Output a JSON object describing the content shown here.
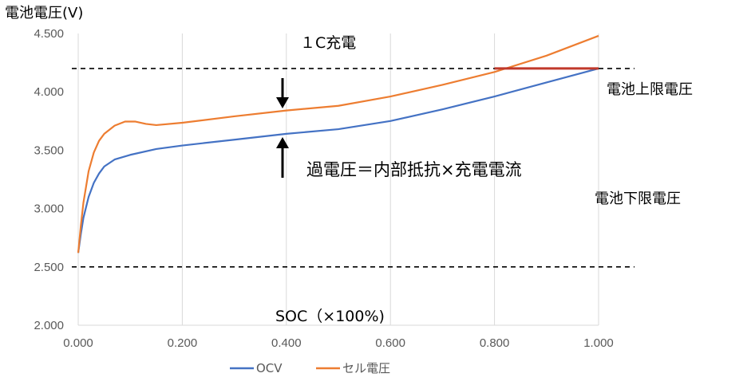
{
  "chart_data": {
    "type": "line",
    "ylabel": "電池電圧(V)",
    "xlim": [
      0,
      1
    ],
    "ylim": [
      2.0,
      4.5
    ],
    "x_ticks": [
      "0.000",
      "0.200",
      "0.400",
      "0.600",
      "0.800",
      "1.000"
    ],
    "y_ticks": [
      "2.000",
      "2.500",
      "3.000",
      "3.500",
      "4.000",
      "4.500"
    ],
    "grid": "vertical",
    "legend_position": "bottom",
    "series": [
      {
        "name": "OCV",
        "color": "#4472C4",
        "points": [
          [
            0.0,
            2.62
          ],
          [
            0.005,
            2.78
          ],
          [
            0.01,
            2.92
          ],
          [
            0.02,
            3.1
          ],
          [
            0.03,
            3.22
          ],
          [
            0.04,
            3.3
          ],
          [
            0.05,
            3.36
          ],
          [
            0.07,
            3.42
          ],
          [
            0.1,
            3.46
          ],
          [
            0.15,
            3.51
          ],
          [
            0.2,
            3.54
          ],
          [
            0.3,
            3.59
          ],
          [
            0.4,
            3.64
          ],
          [
            0.5,
            3.68
          ],
          [
            0.6,
            3.75
          ],
          [
            0.7,
            3.85
          ],
          [
            0.8,
            3.96
          ],
          [
            0.9,
            4.08
          ],
          [
            1.0,
            4.2
          ]
        ]
      },
      {
        "name": "セル電圧",
        "color": "#ED7D31",
        "points": [
          [
            0.0,
            2.62
          ],
          [
            0.005,
            2.85
          ],
          [
            0.01,
            3.05
          ],
          [
            0.02,
            3.32
          ],
          [
            0.03,
            3.48
          ],
          [
            0.04,
            3.58
          ],
          [
            0.05,
            3.64
          ],
          [
            0.07,
            3.71
          ],
          [
            0.09,
            3.745
          ],
          [
            0.11,
            3.745
          ],
          [
            0.13,
            3.725
          ],
          [
            0.15,
            3.715
          ],
          [
            0.2,
            3.735
          ],
          [
            0.3,
            3.79
          ],
          [
            0.4,
            3.84
          ],
          [
            0.5,
            3.88
          ],
          [
            0.6,
            3.96
          ],
          [
            0.7,
            4.06
          ],
          [
            0.8,
            4.17
          ],
          [
            0.9,
            4.31
          ],
          [
            1.0,
            4.48
          ]
        ]
      }
    ],
    "reference_lines": [
      {
        "y": 4.2,
        "label": "電池上限電圧"
      },
      {
        "y": 2.5,
        "label": "電池下限電圧"
      }
    ],
    "cv_segment": {
      "x": [
        0.8,
        1.0
      ],
      "y": 4.2,
      "color": "#C0392B"
    },
    "annotations": {
      "rate": "１C充電",
      "overvoltage": "過電圧＝内部抵抗×充電電流",
      "x_title": "SOC（×100%)",
      "upper_limit": "電池上限電圧",
      "lower_limit": "電池下限電圧"
    }
  }
}
